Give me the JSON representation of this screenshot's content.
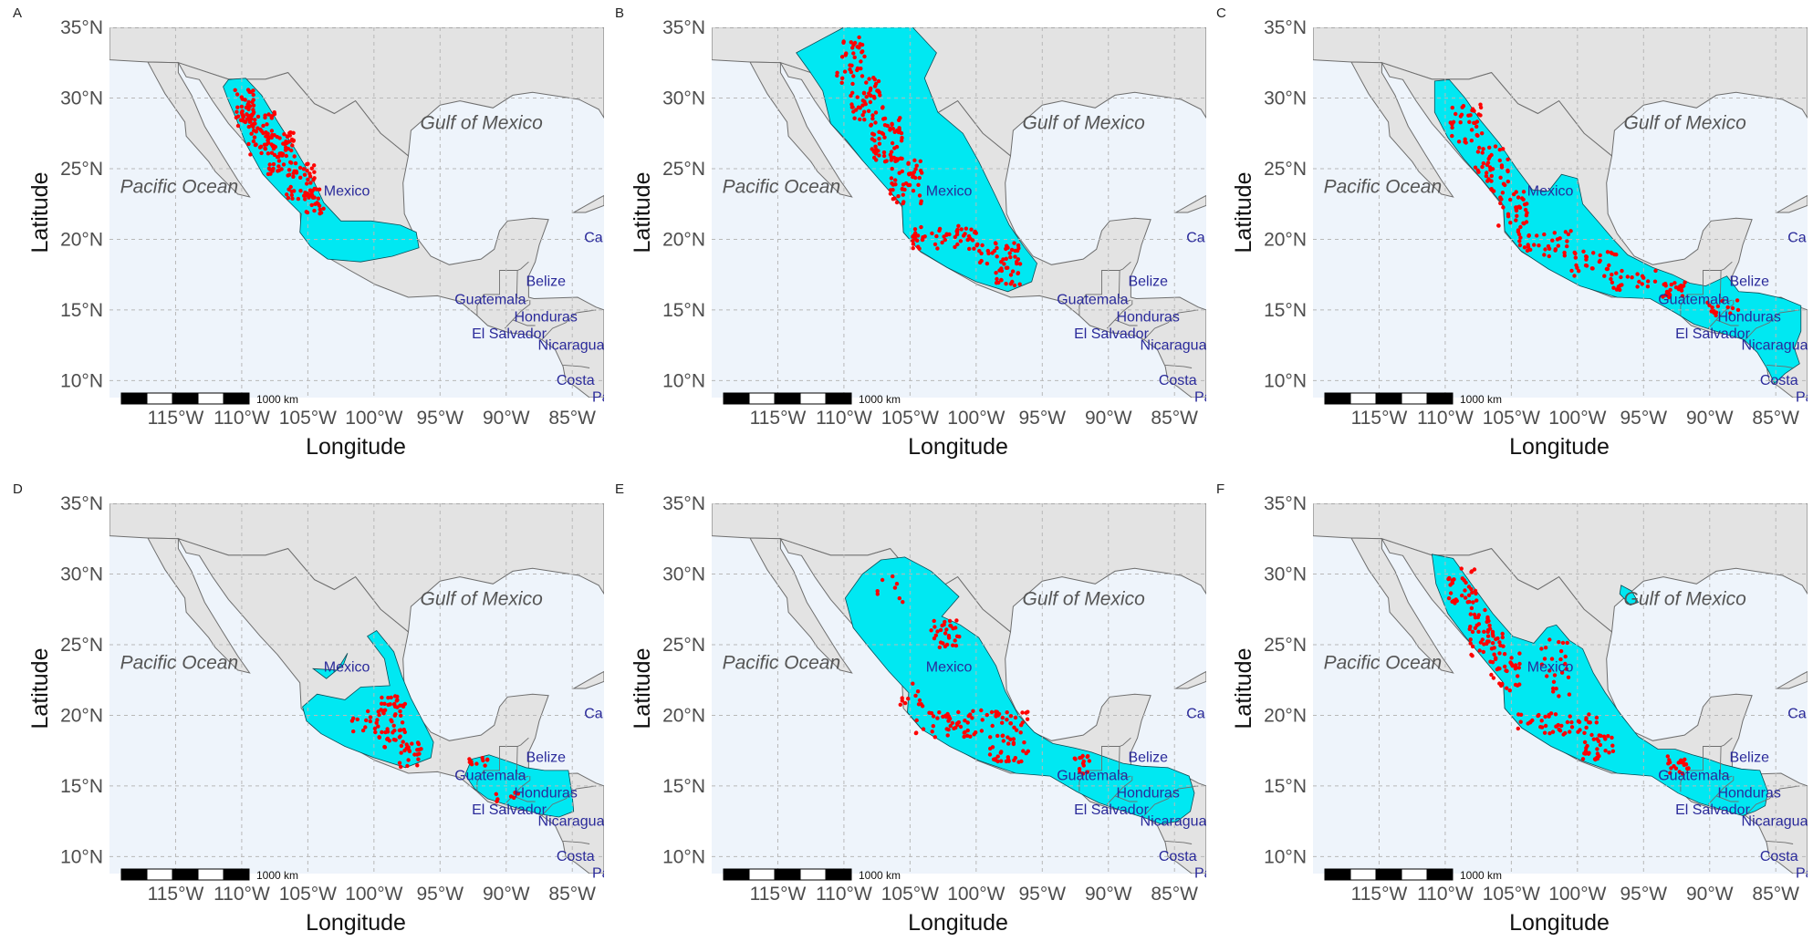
{
  "map": {
    "ocean_labels": [
      "Pacific Ocean",
      "Gulf of Mexico"
    ],
    "country_labels": [
      "Mexico",
      "Belize",
      "Guatemala",
      "Honduras",
      "El Salvador",
      "Nicaragua",
      "Costa",
      "Ca",
      "Pa"
    ],
    "lat_ticks": [
      "35°N",
      "30°N",
      "25°N",
      "20°N",
      "15°N",
      "10°N"
    ],
    "lon_ticks": [
      "115°W",
      "110°W",
      "105°W",
      "100°W",
      "95°W",
      "90°W",
      "85°W"
    ],
    "xlabel": "Longitude",
    "ylabel": "Latitude",
    "scalebar_label": "1000 km",
    "colors": {
      "sea": "#eef4fb",
      "land": "#e3e3e3",
      "border": "#6e6e6e",
      "suitable_area": "#00e8f2",
      "occurrence_points": "#ff0000",
      "gridline": "#b8b8b8"
    },
    "panels": [
      {
        "label": "A",
        "occurrence_points": "red",
        "suitable_area": "cyan"
      },
      {
        "label": "B",
        "occurrence_points": "red",
        "suitable_area": "cyan"
      },
      {
        "label": "C",
        "occurrence_points": "red",
        "suitable_area": "cyan"
      },
      {
        "label": "D",
        "occurrence_points": "red",
        "suitable_area": "cyan"
      },
      {
        "label": "E",
        "occurrence_points": "red",
        "suitable_area": "cyan"
      },
      {
        "label": "F",
        "occurrence_points": "red",
        "suitable_area": "cyan"
      }
    ]
  }
}
